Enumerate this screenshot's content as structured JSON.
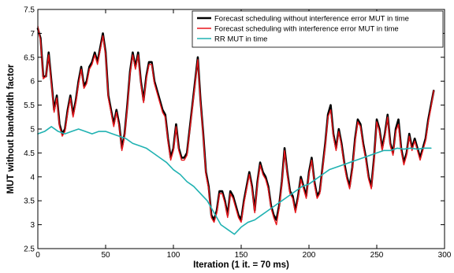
{
  "chart_data": {
    "type": "line",
    "xlabel": "Iteration (1 it. = 70 ms)",
    "ylabel": "MUT without bandwidth factor",
    "xlim": [
      0,
      300
    ],
    "ylim": [
      2.5,
      7.5
    ],
    "xticks": [
      0,
      50,
      100,
      150,
      200,
      250,
      300
    ],
    "yticks": [
      2.5,
      3,
      3.5,
      4,
      4.5,
      5,
      5.5,
      6,
      6.5,
      7,
      7.5
    ],
    "grid": false,
    "legend_position": "top-right",
    "series": [
      {
        "name": "Forecast scheduling without interference error  MUT in time",
        "color": "#000000",
        "x": [
          0,
          2,
          4,
          6,
          8,
          10,
          12,
          14,
          16,
          18,
          20,
          22,
          24,
          26,
          28,
          30,
          32,
          34,
          36,
          38,
          40,
          42,
          44,
          46,
          48,
          50,
          52,
          54,
          56,
          58,
          60,
          62,
          64,
          66,
          68,
          70,
          72,
          74,
          76,
          78,
          80,
          82,
          84,
          86,
          88,
          90,
          92,
          94,
          96,
          98,
          100,
          102,
          104,
          106,
          108,
          110,
          112,
          114,
          116,
          118,
          120,
          122,
          124,
          126,
          128,
          130,
          132,
          134,
          136,
          138,
          140,
          142,
          144,
          146,
          148,
          150,
          152,
          154,
          156,
          158,
          160,
          162,
          164,
          166,
          168,
          170,
          172,
          174,
          176,
          178,
          180,
          182,
          184,
          186,
          188,
          190,
          192,
          194,
          196,
          198,
          200,
          202,
          204,
          206,
          208,
          210,
          212,
          214,
          216,
          218,
          220,
          222,
          224,
          226,
          228,
          230,
          232,
          234,
          236,
          238,
          240,
          242,
          244,
          246,
          248,
          250,
          252,
          254,
          256,
          258,
          260,
          262,
          264,
          266,
          268,
          270,
          272,
          274,
          276,
          278,
          280,
          282,
          284,
          286,
          288,
          290,
          292
        ],
        "values": [
          7.1,
          6.9,
          6.1,
          6.1,
          6.6,
          6.0,
          5.4,
          5.7,
          5.1,
          4.9,
          5.0,
          5.4,
          5.7,
          5.3,
          5.6,
          6.0,
          6.3,
          5.9,
          6.0,
          6.3,
          6.4,
          6.6,
          6.4,
          6.7,
          7.0,
          6.6,
          5.7,
          5.4,
          5.1,
          5.4,
          5.1,
          4.6,
          4.9,
          5.5,
          6.2,
          6.6,
          6.3,
          6.6,
          6.0,
          5.6,
          6.1,
          6.4,
          6.4,
          6.0,
          5.8,
          5.6,
          5.4,
          5.3,
          4.8,
          4.4,
          4.6,
          5.1,
          4.6,
          4.4,
          4.4,
          4.5,
          5.0,
          5.5,
          6.0,
          6.5,
          5.6,
          4.9,
          4.1,
          3.8,
          3.2,
          3.1,
          3.3,
          3.7,
          3.7,
          3.5,
          3.2,
          3.7,
          3.6,
          3.4,
          3.2,
          3.1,
          3.5,
          3.8,
          4.1,
          3.8,
          3.3,
          3.9,
          4.3,
          4.1,
          4.0,
          3.8,
          3.4,
          3.2,
          3.1,
          3.4,
          3.9,
          4.6,
          4.1,
          3.7,
          3.6,
          3.3,
          3.6,
          4.0,
          3.8,
          3.6,
          4.1,
          4.4,
          3.9,
          3.6,
          3.7,
          4.2,
          4.7,
          5.3,
          5.5,
          4.9,
          4.6,
          5.0,
          4.7,
          4.3,
          4.0,
          3.8,
          4.2,
          4.8,
          5.2,
          5.1,
          4.7,
          4.4,
          4.0,
          3.8,
          4.4,
          5.2,
          5.0,
          4.6,
          4.9,
          5.3,
          4.7,
          4.5,
          5.0,
          5.2,
          4.6,
          4.3,
          4.5,
          4.9,
          4.6,
          4.8,
          4.6,
          4.4,
          4.6,
          4.8,
          5.2,
          5.5,
          5.8
        ]
      },
      {
        "name": "Forecast scheduling with interference error  MUT in time",
        "color": "#e8161b",
        "x": [
          0,
          2,
          4,
          6,
          8,
          10,
          12,
          14,
          16,
          18,
          20,
          22,
          24,
          26,
          28,
          30,
          32,
          34,
          36,
          38,
          40,
          42,
          44,
          46,
          48,
          50,
          52,
          54,
          56,
          58,
          60,
          62,
          64,
          66,
          68,
          70,
          72,
          74,
          76,
          78,
          80,
          82,
          84,
          86,
          88,
          90,
          92,
          94,
          96,
          98,
          100,
          102,
          104,
          106,
          108,
          110,
          112,
          114,
          116,
          118,
          120,
          122,
          124,
          126,
          128,
          130,
          132,
          134,
          136,
          138,
          140,
          142,
          144,
          146,
          148,
          150,
          152,
          154,
          156,
          158,
          160,
          162,
          164,
          166,
          168,
          170,
          172,
          174,
          176,
          178,
          180,
          182,
          184,
          186,
          188,
          190,
          192,
          194,
          196,
          198,
          200,
          202,
          204,
          206,
          208,
          210,
          212,
          214,
          216,
          218,
          220,
          222,
          224,
          226,
          228,
          230,
          232,
          234,
          236,
          238,
          240,
          242,
          244,
          246,
          248,
          250,
          252,
          254,
          256,
          258,
          260,
          262,
          264,
          266,
          268,
          270,
          272,
          274,
          276,
          278,
          280,
          282,
          284,
          286,
          288,
          290,
          292
        ],
        "values": [
          7.15,
          6.85,
          6.05,
          6.1,
          6.55,
          5.95,
          5.35,
          5.65,
          5.05,
          4.85,
          4.95,
          5.35,
          5.65,
          5.25,
          5.55,
          5.95,
          6.25,
          5.85,
          5.95,
          6.25,
          6.35,
          6.55,
          6.35,
          6.65,
          6.95,
          6.55,
          5.65,
          5.35,
          5.05,
          5.35,
          5.05,
          4.55,
          4.85,
          5.45,
          6.15,
          6.55,
          6.25,
          6.55,
          5.95,
          5.55,
          6.05,
          6.35,
          6.35,
          5.95,
          5.75,
          5.55,
          5.35,
          5.25,
          4.75,
          4.35,
          4.55,
          5.05,
          4.55,
          4.35,
          4.35,
          4.45,
          4.95,
          5.45,
          5.95,
          6.45,
          5.55,
          4.85,
          4.05,
          3.75,
          3.15,
          3.05,
          3.25,
          3.65,
          3.65,
          3.45,
          3.15,
          3.65,
          3.55,
          3.35,
          3.15,
          3.05,
          3.45,
          3.75,
          4.05,
          3.75,
          3.25,
          3.85,
          4.25,
          4.05,
          3.95,
          3.75,
          3.35,
          3.15,
          3.0,
          3.35,
          3.85,
          4.55,
          4.05,
          3.65,
          3.55,
          3.25,
          3.55,
          3.95,
          3.75,
          3.55,
          4.05,
          4.35,
          3.85,
          3.55,
          3.65,
          4.15,
          4.65,
          5.25,
          5.4,
          4.85,
          4.55,
          4.95,
          4.65,
          4.25,
          3.95,
          3.75,
          4.15,
          4.75,
          5.15,
          5.05,
          4.65,
          4.35,
          3.95,
          3.75,
          4.35,
          5.15,
          4.95,
          4.55,
          4.85,
          5.25,
          4.65,
          4.45,
          4.95,
          5.1,
          4.55,
          4.25,
          4.45,
          4.85,
          4.55,
          4.75,
          4.55,
          4.35,
          4.55,
          4.75,
          5.15,
          5.45,
          5.8
        ]
      },
      {
        "name": "RR MUT in time",
        "color": "#20b2b2",
        "x": [
          0,
          5,
          10,
          15,
          20,
          25,
          30,
          35,
          40,
          45,
          50,
          55,
          60,
          65,
          70,
          75,
          80,
          85,
          90,
          95,
          100,
          105,
          110,
          115,
          120,
          125,
          130,
          135,
          140,
          145,
          150,
          155,
          160,
          165,
          170,
          175,
          180,
          185,
          190,
          195,
          200,
          205,
          210,
          215,
          220,
          225,
          230,
          235,
          240,
          245,
          250,
          255,
          260,
          265,
          270,
          275,
          280,
          285,
          290
        ],
        "values": [
          4.9,
          4.95,
          5.05,
          4.95,
          4.9,
          4.95,
          5.0,
          4.95,
          4.9,
          4.95,
          4.95,
          4.9,
          4.85,
          4.8,
          4.7,
          4.65,
          4.6,
          4.5,
          4.4,
          4.3,
          4.15,
          4.05,
          3.9,
          3.8,
          3.65,
          3.5,
          3.25,
          3.0,
          2.9,
          2.8,
          2.95,
          3.05,
          3.1,
          3.2,
          3.3,
          3.4,
          3.5,
          3.6,
          3.7,
          3.8,
          3.85,
          3.95,
          4.05,
          4.15,
          4.2,
          4.25,
          4.3,
          4.35,
          4.4,
          4.45,
          4.5,
          4.55,
          4.55,
          4.6,
          4.58,
          4.6,
          4.58,
          4.6,
          4.6
        ]
      }
    ]
  }
}
